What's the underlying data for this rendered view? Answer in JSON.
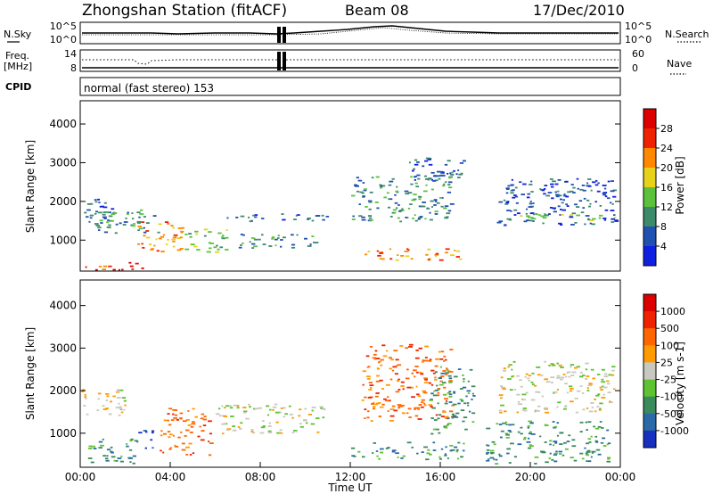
{
  "header": {
    "title": "Zhongshan Station (fitACF)",
    "beam": "Beam 08",
    "date": "17/Dec/2010"
  },
  "nsky_panel": {
    "left_label": "N.Sky",
    "right_label": "N.Search",
    "left_ticks": [
      "10^5",
      "10^0"
    ],
    "right_ticks": [
      "10^5",
      "10^0"
    ]
  },
  "freq_panel": {
    "left_label_1": "Freq.",
    "left_label_2": "[MHz]",
    "right_label": "Nave",
    "left_ticks": [
      "14",
      "8"
    ],
    "right_ticks": [
      "60",
      "0"
    ]
  },
  "cpid": {
    "label": "CPID",
    "mode_text": "normal (fast stereo) 153"
  },
  "chart_data": [
    {
      "type": "heatmap",
      "name": "power",
      "ylabel": "Slant Range [km]",
      "ylim": [
        200,
        4600
      ],
      "yticks": [
        "1000",
        "2000",
        "3000",
        "4000"
      ],
      "xlim_hours": [
        0,
        24
      ],
      "colorbar_label": "Power [dB]",
      "colorbar_ticks": [
        "4",
        "8",
        "12",
        "16",
        "20",
        "24",
        "28"
      ],
      "colors": [
        "#1020e0",
        "#2050b0",
        "#3d8a6b",
        "#5cc23c",
        "#e6d21a",
        "#ff8800",
        "#ee2200",
        "#dd0000"
      ],
      "blobs": [
        {
          "h0": 0.0,
          "h1": 1.5,
          "r0": 1400,
          "r1": 2100,
          "level": 1
        },
        {
          "h0": 0.5,
          "h1": 3.5,
          "r0": 1200,
          "r1": 1800,
          "level": 2
        },
        {
          "h0": 2.5,
          "h1": 4.5,
          "r0": 700,
          "r1": 1500,
          "level": 5
        },
        {
          "h0": 0.2,
          "h1": 3.0,
          "r0": 250,
          "r1": 450,
          "level": 6
        },
        {
          "h0": 4.5,
          "h1": 6.5,
          "r0": 700,
          "r1": 1300,
          "level": 3
        },
        {
          "h0": 6.5,
          "h1": 11.0,
          "r0": 1500,
          "r1": 1700,
          "level": 1
        },
        {
          "h0": 7.0,
          "h1": 10.5,
          "r0": 800,
          "r1": 1200,
          "level": 2
        },
        {
          "h0": 12.0,
          "h1": 16.5,
          "r0": 1500,
          "r1": 2700,
          "level": 2
        },
        {
          "h0": 14.5,
          "h1": 17.0,
          "r0": 2500,
          "r1": 3200,
          "level": 1
        },
        {
          "h0": 12.5,
          "h1": 17.0,
          "r0": 500,
          "r1": 800,
          "level": 5
        },
        {
          "h0": 18.5,
          "h1": 23.8,
          "r0": 1400,
          "r1": 2600,
          "level": 1
        },
        {
          "h0": 19.5,
          "h1": 23.8,
          "r0": 1500,
          "r1": 1700,
          "level": 3
        }
      ]
    },
    {
      "type": "heatmap",
      "name": "velocity",
      "ylabel": "Slant Range [km]",
      "ylim": [
        200,
        4600
      ],
      "yticks": [
        "1000",
        "2000",
        "3000",
        "4000"
      ],
      "xlabel": "Time UT",
      "xticks": [
        "00:00",
        "04:00",
        "08:00",
        "12:00",
        "16:00",
        "20:00",
        "00:00"
      ],
      "xlim_hours": [
        0,
        24
      ],
      "colorbar_label": "Velocity [m s-1]",
      "colorbar_ticks": [
        "1000",
        "500",
        "100",
        "25",
        "-25",
        "-100",
        "-500",
        "-1000"
      ],
      "colors": [
        "#1830c0",
        "#2a6aa8",
        "#3a8a5c",
        "#5ec232",
        "#c8c8c0",
        "#ff9a00",
        "#ff6600",
        "#ee2200",
        "#dd0000"
      ],
      "blobs": [
        {
          "h0": 0.0,
          "h1": 2.0,
          "r0": 1400,
          "r1": 2100,
          "level": 4
        },
        {
          "h0": 0.3,
          "h1": 2.5,
          "r0": 250,
          "r1": 900,
          "level": 2
        },
        {
          "h0": 2.5,
          "h1": 3.2,
          "r0": 600,
          "r1": 1100,
          "level": 0
        },
        {
          "h0": 3.5,
          "h1": 5.8,
          "r0": 500,
          "r1": 1600,
          "level": 6
        },
        {
          "h0": 6.0,
          "h1": 11.0,
          "r0": 1000,
          "r1": 1700,
          "level": 4
        },
        {
          "h0": 12.5,
          "h1": 16.5,
          "r0": 1300,
          "r1": 3100,
          "level": 6
        },
        {
          "h0": 12.0,
          "h1": 17.0,
          "r0": 400,
          "r1": 800,
          "level": 2
        },
        {
          "h0": 15.5,
          "h1": 17.5,
          "r0": 1000,
          "r1": 2600,
          "level": 2
        },
        {
          "h0": 18.5,
          "h1": 23.8,
          "r0": 1500,
          "r1": 2700,
          "level": 4
        },
        {
          "h0": 18.0,
          "h1": 23.5,
          "r0": 300,
          "r1": 1300,
          "level": 2
        }
      ]
    }
  ]
}
